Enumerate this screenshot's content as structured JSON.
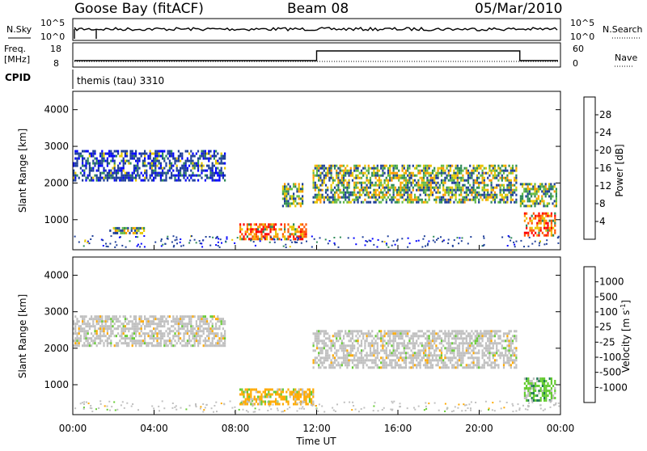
{
  "header": {
    "station": "Goose Bay (fitACF)",
    "beam": "Beam 08",
    "date": "05/Mar/2010"
  },
  "noise_panel": {
    "left_label": "N.Sky",
    "right_label": "N.Search",
    "left_ticks": [
      "10^5",
      "10^0"
    ],
    "right_ticks": [
      "10^5",
      "10^0"
    ]
  },
  "freq_panel": {
    "left_label_1": "Freq.",
    "left_label_2": "[MHz]",
    "right_label": "Nave",
    "left_ticks": [
      "18",
      "8"
    ],
    "right_ticks": [
      "60",
      "0"
    ],
    "freq_step": {
      "change_hour": 12,
      "end_hour": 22
    }
  },
  "cpid_panel": {
    "label": "CPID",
    "program": "themis (tau) 3310"
  },
  "power_panel": {
    "ylabel": "Slant Range [km]",
    "y_ticks": [
      "1000",
      "2000",
      "3000",
      "4000"
    ],
    "colorbar_label": "Power [dB]",
    "colorbar_ticks": [
      "4",
      "8",
      "12",
      "16",
      "20",
      "24",
      "28"
    ],
    "colorbar_colors": [
      "#0000ff",
      "#1f3f99",
      "#2e8b57",
      "#66bb44",
      "#e6c800",
      "#ff9900",
      "#ff5500",
      "#ff0000"
    ]
  },
  "velocity_panel": {
    "ylabel": "Slant Range [km]",
    "y_ticks": [
      "1000",
      "2000",
      "3000",
      "4000"
    ],
    "colorbar_label": "Velocity [m s",
    "colorbar_exp": "-1",
    "colorbar_suffix": "]",
    "colorbar_ticks": [
      "1000",
      "500",
      "100",
      "25",
      "-25",
      "-100",
      "-500",
      "-1000"
    ],
    "colorbar_colors": [
      "#0000cc",
      "#2255cc",
      "#1f7a55",
      "#66cc33",
      "#c0c0c0",
      "#ffaa00",
      "#ff6600",
      "#ff0000",
      "#ee0000"
    ]
  },
  "x_axis": {
    "label": "Time UT",
    "ticks": [
      "00:00",
      "04:00",
      "08:00",
      "12:00",
      "16:00",
      "20:00",
      "00:00"
    ]
  },
  "colors": {
    "gray_scatter": "#c0c0c0",
    "orange_scatter": "#ffaa00",
    "green_scatter": "#66cc33"
  },
  "chart_data": {
    "type": "heatmap",
    "x_range_hours": [
      0,
      24
    ],
    "y_range_km": [
      180,
      4500
    ],
    "power_regions": [
      {
        "t0": 0.0,
        "t1": 7.5,
        "r0": 2100,
        "r1": 2900,
        "level": "low"
      },
      {
        "t0": 1.8,
        "t1": 3.5,
        "r0": 650,
        "r1": 800,
        "level": "mid"
      },
      {
        "t0": 8.2,
        "t1": 11.5,
        "r0": 450,
        "r1": 900,
        "level": "high"
      },
      {
        "t0": 10.3,
        "t1": 11.3,
        "r0": 1400,
        "r1": 2000,
        "level": "mid"
      },
      {
        "t0": 11.8,
        "t1": 21.8,
        "r0": 1500,
        "r1": 2500,
        "level": "mid"
      },
      {
        "t0": 22.2,
        "t1": 23.7,
        "r0": 600,
        "r1": 1200,
        "level": "high"
      },
      {
        "t0": 22.0,
        "t1": 23.8,
        "r0": 1400,
        "r1": 2000,
        "level": "mid"
      }
    ],
    "velocity_regions": [
      {
        "t0": 0.0,
        "t1": 7.5,
        "r0": 2100,
        "r1": 2900,
        "class": "gray"
      },
      {
        "t0": 11.8,
        "t1": 21.8,
        "r0": 1500,
        "r1": 2500,
        "class": "gray"
      },
      {
        "t0": 8.2,
        "t1": 11.8,
        "r0": 450,
        "r1": 900,
        "class": "orange"
      },
      {
        "t0": 22.2,
        "t1": 23.7,
        "r0": 600,
        "r1": 1200,
        "class": "green"
      }
    ]
  }
}
